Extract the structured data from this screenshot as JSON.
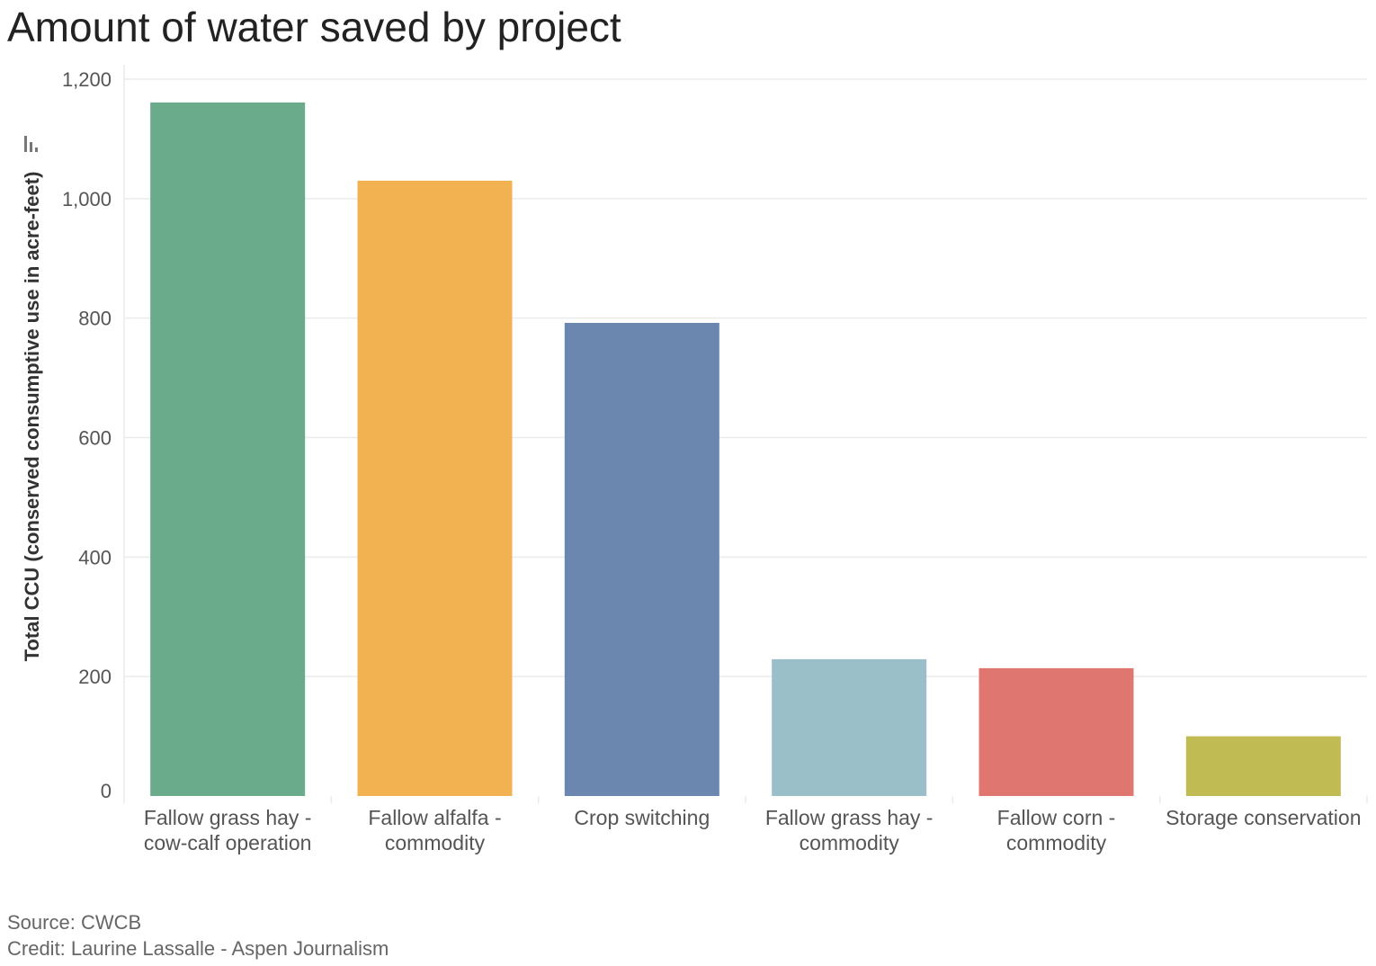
{
  "title": "Amount of water saved by project",
  "footer": {
    "source_label": "Source:",
    "source_value": "CWCB",
    "credit_label": "Credit:",
    "credit_value": "Laurine Lassalle - Aspen Journalism"
  },
  "colors": {
    "grid": "#ebebeb",
    "tick_text": "#555555",
    "axis_title": "#333333",
    "icon": "#777777"
  },
  "chart_data": {
    "type": "bar",
    "title": "Amount of water saved by project",
    "xlabel": "",
    "ylabel": "Total CCU (conserved consumptive use in acre-feet)",
    "ylim": [
      0,
      1200
    ],
    "yticks": [
      0,
      200,
      400,
      600,
      800,
      1000,
      1200
    ],
    "ytick_labels": [
      "0",
      "200",
      "400",
      "600",
      "800",
      "1,000",
      "1,200"
    ],
    "grid": true,
    "legend": "none",
    "categories": [
      [
        "Fallow grass hay -",
        "cow-calf operation"
      ],
      [
        "Fallow alfalfa -",
        "commodity"
      ],
      [
        "Crop switching"
      ],
      [
        "Fallow grass hay -",
        "commodity"
      ],
      [
        "Fallow corn -",
        "commodity"
      ],
      [
        "Storage conservation"
      ]
    ],
    "values": [
      1161,
      1030,
      792,
      229,
      214,
      100
    ],
    "bar_colors": [
      "#6aab8b",
      "#f2b252",
      "#6b87b0",
      "#9abfc8",
      "#e07670",
      "#c1bb53"
    ]
  }
}
